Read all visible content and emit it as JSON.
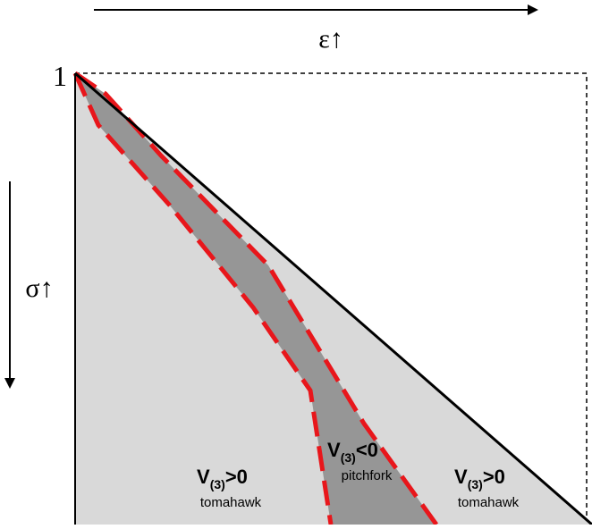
{
  "axes": {
    "epsilon_label": "ε↑",
    "sigma_label": "σ↑",
    "origin_label": "1"
  },
  "regions": {
    "left": {
      "sign_label": "V(3)>0",
      "v": "V",
      "sub": "(3)",
      "rel": ">0",
      "name": "tomahawk"
    },
    "middle": {
      "sign_label": "V(3)<0",
      "v": "V",
      "sub": "(3)",
      "rel": "<0",
      "name": "pitchfork"
    },
    "right": {
      "sign_label": "V(3)>0",
      "v": "V",
      "sub": "(3)",
      "rel": ">0",
      "name": "tomahawk"
    }
  },
  "colors": {
    "outer_region": "#d9d9d9",
    "inner_region": "#969696",
    "boundary_dash": "#e8161b",
    "diagonal": "#000000"
  }
}
